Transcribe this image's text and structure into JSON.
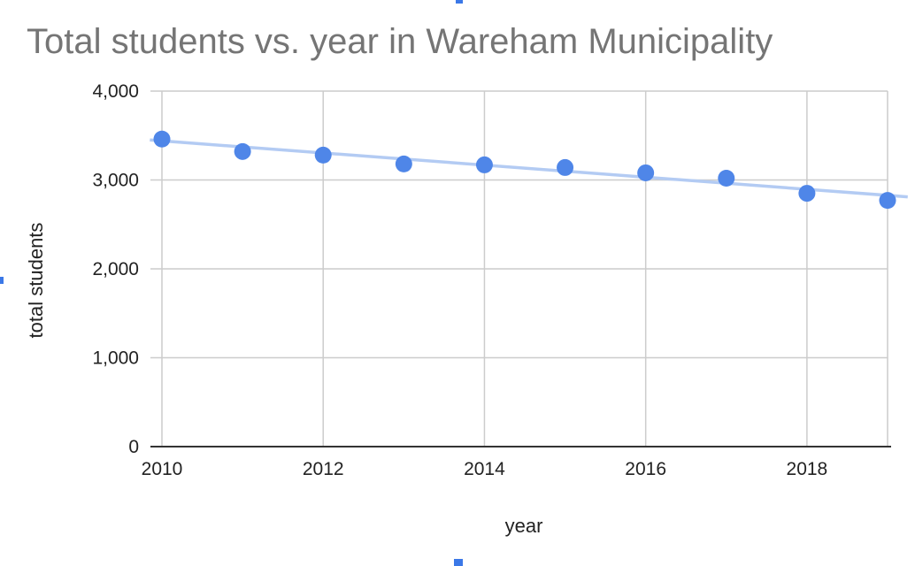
{
  "chart_data": {
    "type": "scatter",
    "title": "Total students vs. year in Wareham Municipality",
    "xlabel": "year",
    "ylabel": "total students",
    "xlim": [
      2010,
      2019
    ],
    "ylim": [
      0,
      4000
    ],
    "x_ticks": [
      "2010",
      "2012",
      "2014",
      "2016",
      "2018"
    ],
    "y_ticks": [
      "0",
      "1,000",
      "2,000",
      "3,000",
      "4,000"
    ],
    "grid": true,
    "legend": "none",
    "trendline": {
      "type": "linear",
      "start": [
        2009.85,
        3450
      ],
      "end": [
        2019.25,
        2810
      ]
    },
    "series": [
      {
        "x": [
          2010,
          2011,
          2012,
          2013,
          2014,
          2015,
          2016,
          2017,
          2018,
          2019
        ],
        "y": [
          3460,
          3320,
          3280,
          3180,
          3170,
          3140,
          3080,
          3020,
          2850,
          2770
        ]
      }
    ],
    "colors": {
      "points": "#4f86e8",
      "trendline": "#b3cbf3",
      "title": "#757575",
      "grid": "#cccccc"
    }
  }
}
